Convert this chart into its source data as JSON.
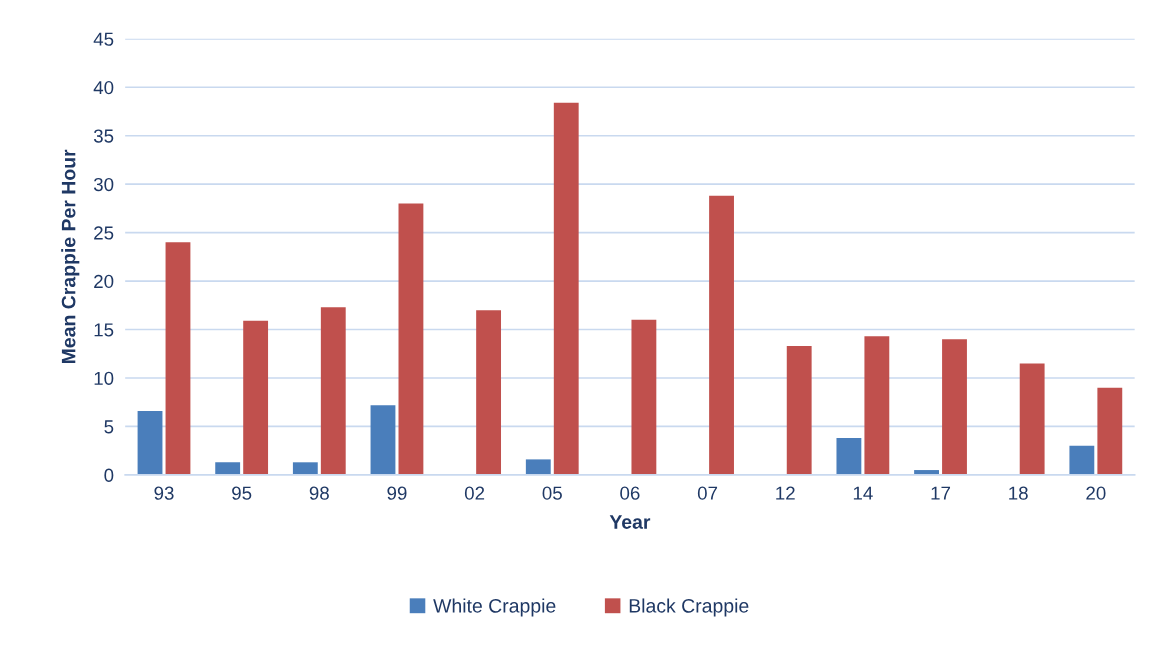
{
  "chart_data": {
    "type": "bar",
    "xlabel": "Year",
    "ylabel": "Mean Crappie Per Hour",
    "categories": [
      "93",
      "95",
      "98",
      "99",
      "02",
      "05",
      "06",
      "07",
      "12",
      "14",
      "17",
      "18",
      "20"
    ],
    "series": [
      {
        "name": "White Crappie",
        "color": "#4a7ebb",
        "values": [
          6.6,
          1.3,
          1.3,
          7.2,
          0,
          1.6,
          0,
          0,
          0,
          3.8,
          0.5,
          0,
          3.0
        ]
      },
      {
        "name": "Black Crappie",
        "color": "#c0504d",
        "values": [
          24.0,
          15.9,
          17.3,
          28.0,
          17.0,
          38.4,
          16.0,
          28.8,
          13.3,
          14.3,
          14.0,
          11.5,
          9.0
        ]
      }
    ],
    "ylim": [
      0,
      45
    ],
    "yticks": [
      0,
      5,
      10,
      15,
      20,
      25,
      30,
      35,
      40,
      45
    ],
    "grid": "y",
    "legend": "bottom"
  }
}
